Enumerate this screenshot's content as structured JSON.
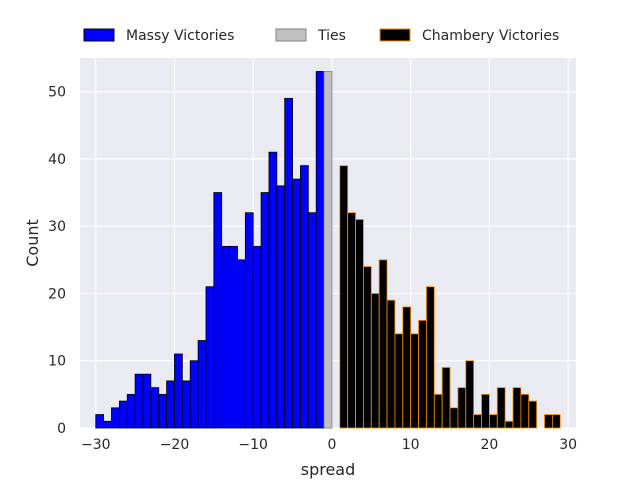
{
  "chart_data": {
    "type": "bar",
    "title": "",
    "xlabel": "spread",
    "ylabel": "Count",
    "xlim": [
      -32,
      31
    ],
    "ylim": [
      0,
      55
    ],
    "x_ticks": [
      -30,
      -20,
      -10,
      0,
      10,
      20,
      30
    ],
    "y_ticks": [
      0,
      10,
      20,
      30,
      40,
      50
    ],
    "grid": true,
    "legend": "top",
    "bin_width": 1,
    "series": [
      {
        "name": "Massy Victories",
        "color": "#0000ff",
        "edge_color": "#000000",
        "bin_start": [
          -30,
          -29,
          -28,
          -27,
          -26,
          -25,
          -24,
          -23,
          -22,
          -21,
          -20,
          -19,
          -18,
          -17,
          -16,
          -15,
          -14,
          -13,
          -12,
          -11,
          -10,
          -9,
          -8,
          -7,
          -6,
          -5,
          -4,
          -3,
          -2,
          -1
        ],
        "values": [
          2,
          1,
          3,
          4,
          5,
          8,
          8,
          6,
          5,
          7,
          11,
          7,
          10,
          13,
          21,
          35,
          27,
          27,
          25,
          32,
          27,
          35,
          41,
          36,
          49,
          37,
          39,
          32,
          53,
          0
        ]
      },
      {
        "name": "Ties",
        "color": "#c0c0c0",
        "edge_color": "#808080",
        "bin_start": [
          -1
        ],
        "values": [
          53
        ]
      },
      {
        "name": "Chambery Victories",
        "color": "#000000",
        "edge_color": "#ff8c00",
        "bin_start": [
          1,
          2,
          3,
          4,
          5,
          6,
          7,
          8,
          9,
          10,
          11,
          12,
          13,
          14,
          15,
          16,
          17,
          18,
          19,
          20,
          21,
          22,
          23,
          24,
          25,
          26,
          27,
          28
        ],
        "values": [
          39,
          32,
          31,
          24,
          20,
          25,
          19,
          14,
          18,
          14,
          16,
          21,
          5,
          9,
          3,
          6,
          10,
          2,
          5,
          2,
          6,
          1,
          6,
          5,
          4,
          0,
          2,
          2
        ]
      }
    ]
  }
}
